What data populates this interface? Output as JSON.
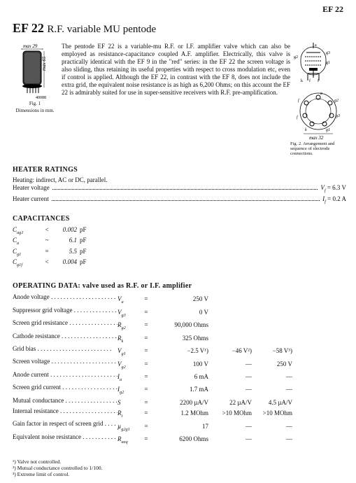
{
  "header": {
    "top_right": "EF 22"
  },
  "title": {
    "main": "EF 22",
    "subtitle": "R.F. variable MU pentode"
  },
  "figures": {
    "fig1": {
      "max_w": "max 29",
      "max_h": "max 65",
      "base": "40088",
      "caption": "Fig. 1",
      "subcaption": "Dimensions in mm."
    },
    "fig2": {
      "pins": {
        "a": "a",
        "g3": "g3",
        "g2": "g2",
        "g1": "g1",
        "k": "k",
        "f1": "f",
        "f2": "f"
      },
      "max_w": "max 32",
      "caption": "Fig. 2.",
      "subcaption": "Arrangement and sequence of electrode connections."
    }
  },
  "intro": "The pentode EF 22 is a variable-mu R.F. or I.F. amplifier valve which can also be employed as resistance-capacitance coupled A.F. amplifier. Electrically, this valve is practically identical with the EF 9 in the \"red\" series: in the EF 22 the screen voltage is also sliding, thus retaining its useful properties with respect to cross modulation etc, even if control is applied. Although the EF 22, in contrast with the EF 8, does not include the extra grid, the equivalent noise resistance is as high as 6,200 Ohms; on this account the EF 22 is admirably suited for use in super-sensitive receivers with R.F. pre-amplification.",
  "sections": {
    "heater_title": "HEATER RATINGS",
    "heater_line": "Heating: indirect, AC or DC, parallel.",
    "heater_rows": [
      {
        "label": "Heater voltage",
        "sym": "V",
        "sub": "f",
        "val": "6.3",
        "unit": "V"
      },
      {
        "label": "Heater current",
        "sym": "I",
        "sub": "f",
        "val": "0.2",
        "unit": "A"
      }
    ],
    "cap_title": "CAPACITANCES",
    "cap_rows": [
      {
        "sym": "C",
        "sub": "ag1",
        "rel": "<",
        "val": "0.002",
        "unit": "pF"
      },
      {
        "sym": "C",
        "sub": "a",
        "rel": "~",
        "val": "6.1",
        "unit": "pF"
      },
      {
        "sym": "C",
        "sub": "g1",
        "rel": "=",
        "val": "5.5",
        "unit": "pF"
      },
      {
        "sym": "C",
        "sub": "g1f",
        "rel": "<",
        "val": "0.004",
        "unit": "pF"
      }
    ],
    "op_title": "OPERATING DATA: valve used as R.F. or I.F. amplifier",
    "op_rows": [
      {
        "label": "Anode voltage",
        "sym": "Vₐ",
        "c1": "250 V",
        "c2": "",
        "c3": ""
      },
      {
        "label": "Suppressor grid voltage",
        "sym": "V_g3",
        "c1": "0 V",
        "c2": "",
        "c3": ""
      },
      {
        "label": "Screen grid resistance",
        "sym": "R_g2",
        "c1": "90,000 Ohms",
        "c2": "",
        "c3": ""
      },
      {
        "label": "Cathode resistance",
        "sym": "R_k",
        "c1": "325 Ohms",
        "c2": "",
        "c3": ""
      },
      {
        "label": "Grid bias",
        "sym": "V_g1",
        "c1": "−2.5 V¹)",
        "c2": "−46 V²)",
        "c3": "−58 V³)"
      },
      {
        "label": "Screen voltage",
        "sym": "V_g2",
        "c1": "100 V",
        "c2": "—",
        "c3": "250 V"
      },
      {
        "label": "Anode current",
        "sym": "Iₐ",
        "c1": "6 mA",
        "c2": "—",
        "c3": "—"
      },
      {
        "label": "Screen grid current",
        "sym": "I_g2",
        "c1": "1.7 mA",
        "c2": "—",
        "c3": "—"
      },
      {
        "label": "Mutual conductance",
        "sym": "S",
        "c1": "2200 µA/V",
        "c2": "22 µA/V",
        "c3": "4.5 µA/V"
      },
      {
        "label": "Internal resistance",
        "sym": "R_i",
        "c1": "1.2 MOhm",
        "c2": ">10 MOhm",
        "c3": ">10 MOhm"
      },
      {
        "label": "Gain factor in respect of screen grid",
        "sym": "µ_g2g1",
        "c1": "17",
        "c2": "—",
        "c3": "—"
      },
      {
        "label": "Equivalent noise resistance",
        "sym": "R_aeq",
        "c1": "6200 Ohms",
        "c2": "—",
        "c3": "—"
      }
    ]
  },
  "footnotes": [
    "¹) Valve not controlled.",
    "²) Mutual conductance controlled to 1/100.",
    "³) Extreme limit of control."
  ],
  "colors": {
    "bg": "#ffffff",
    "fg": "#111111"
  }
}
